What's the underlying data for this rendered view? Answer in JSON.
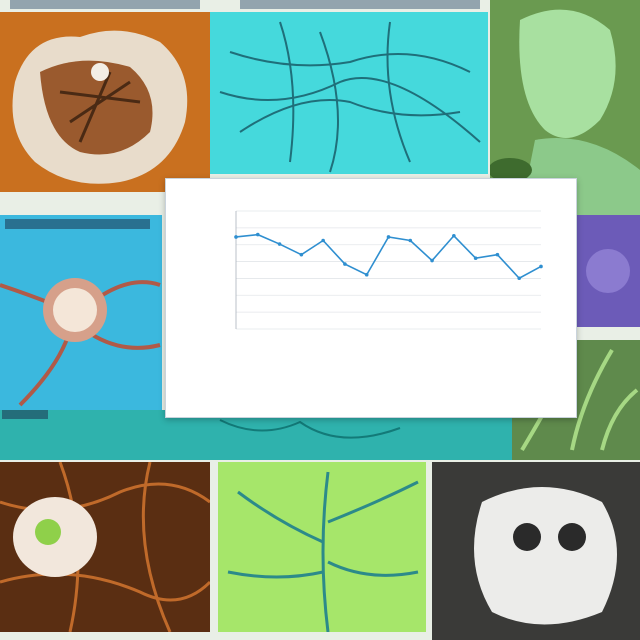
{
  "chart_data": {
    "type": "line",
    "title": "",
    "xlabel": "",
    "ylabel": "",
    "categories": [
      "",
      "",
      "",
      "",
      "",
      "",
      "",
      "",
      "",
      "",
      "",
      "",
      "",
      "",
      ""
    ],
    "values": [
      78,
      80,
      72,
      63,
      75,
      55,
      46,
      78,
      75,
      58,
      79,
      60,
      63,
      43,
      53
    ],
    "ylim": [
      0,
      100
    ],
    "line_color": "#2f8fd0",
    "grid": true,
    "legend": "none"
  },
  "colors": {
    "page_bg": "#e9efe6",
    "accent_blue": "#2f8fd0",
    "cyan": "#38d1de",
    "rust": "#b9682a",
    "green": "#9ee05a"
  }
}
